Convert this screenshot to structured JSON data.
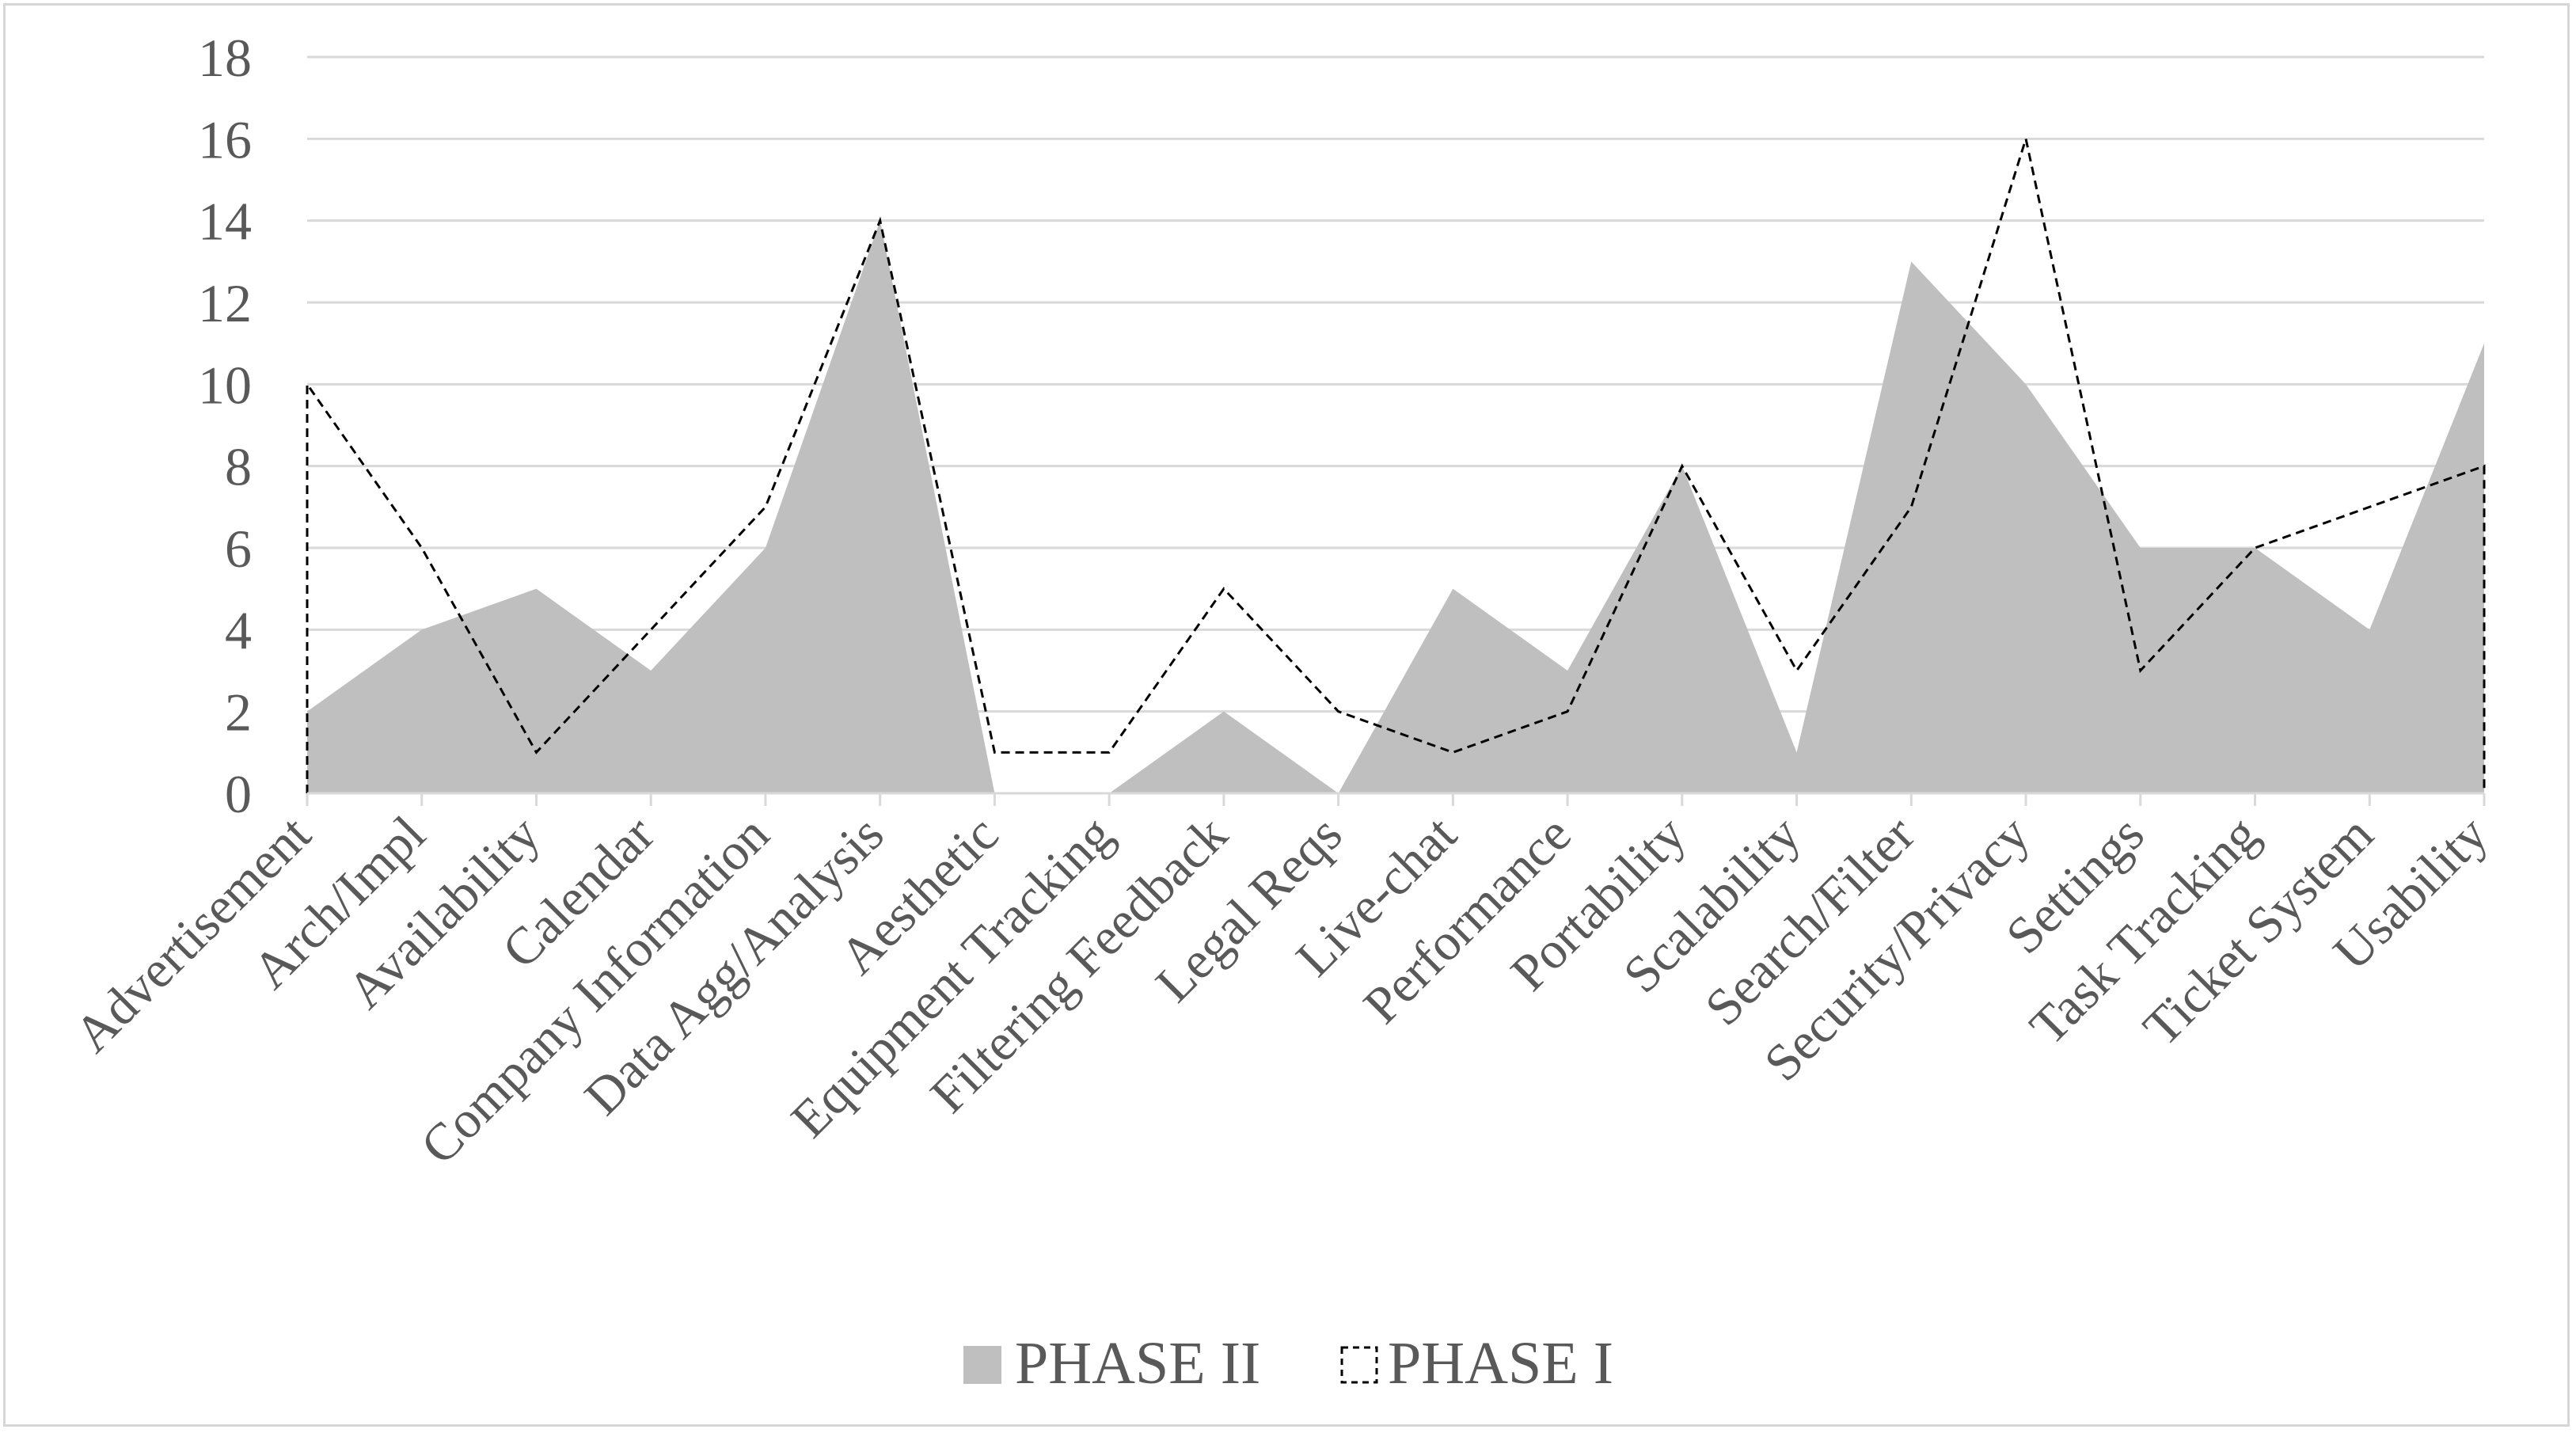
{
  "chart_data": {
    "type": "area",
    "categories": [
      "Advertisement",
      "Arch/Impl",
      "Availability",
      "Calendar",
      "Company Information",
      "Data Agg/Analysis",
      "Aesthetic",
      "Equipment Tracking",
      "Filtering Feedback",
      "Legal Reqs",
      "Live-chat",
      "Performance",
      "Portability",
      "Scalability",
      "Search/Filter",
      "Security/Privacy",
      "Settings",
      "Task Tracking",
      "Ticket System",
      "Usability"
    ],
    "series": [
      {
        "name": "PHASE II",
        "style": "filled area",
        "color": "#bfbfbf",
        "values": [
          2,
          4,
          5,
          3,
          6,
          14,
          0,
          0,
          2,
          0,
          5,
          3,
          8,
          1,
          13,
          10,
          6,
          6,
          4,
          11
        ]
      },
      {
        "name": "PHASE I",
        "style": "dashed line",
        "color": "#000000",
        "values": [
          10,
          6,
          1,
          4,
          7,
          14,
          1,
          1,
          5,
          2,
          1,
          2,
          8,
          3,
          7,
          16,
          3,
          6,
          7,
          8
        ]
      }
    ],
    "yticks": [
      "0",
      "2",
      "4",
      "6",
      "8",
      "10",
      "12",
      "14",
      "16",
      "18"
    ],
    "ylim": [
      0,
      18
    ],
    "grid": "horizontal",
    "legend_position": "bottom-center"
  }
}
